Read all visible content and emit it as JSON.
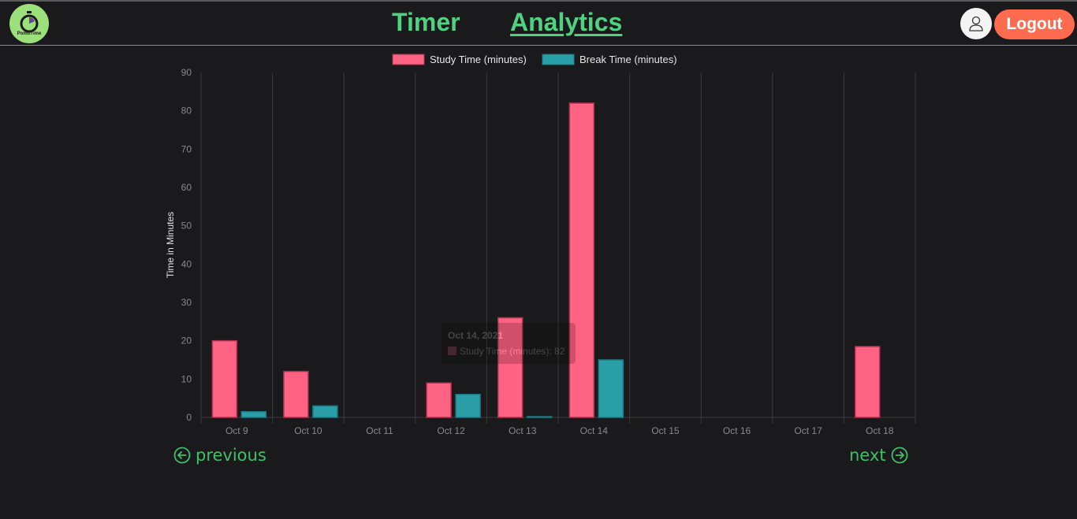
{
  "header": {
    "logo_text": "PomoTime",
    "nav": [
      {
        "label": "Timer"
      },
      {
        "label": "Analytics"
      }
    ],
    "logout_label": "Logout"
  },
  "chart_data": {
    "type": "bar",
    "categories": [
      "Oct 9",
      "Oct 10",
      "Oct 11",
      "Oct 12",
      "Oct 13",
      "Oct 14",
      "Oct 15",
      "Oct 16",
      "Oct 17",
      "Oct 18"
    ],
    "series": [
      {
        "name": "Study Time (minutes)",
        "color": "#ff6384",
        "values": [
          20,
          12,
          0,
          9,
          26,
          82,
          0,
          0,
          0,
          18.5
        ]
      },
      {
        "name": "Break Time (minutes)",
        "color": "#2a9fa8",
        "values": [
          1.5,
          3,
          0,
          6,
          0.2,
          15,
          0,
          0,
          0,
          0
        ]
      }
    ],
    "ylabel": "Time in Minutes",
    "ylim": [
      0,
      90
    ],
    "yticks": [
      0,
      10,
      20,
      30,
      40,
      50,
      60,
      70,
      80,
      90
    ],
    "grid": "vertical",
    "legend": "top-center",
    "tooltip": {
      "title": "Oct 14, 2021",
      "text": "Study Time (minutes): 82"
    }
  },
  "pager": {
    "previous_label": "previous",
    "next_label": "next"
  }
}
